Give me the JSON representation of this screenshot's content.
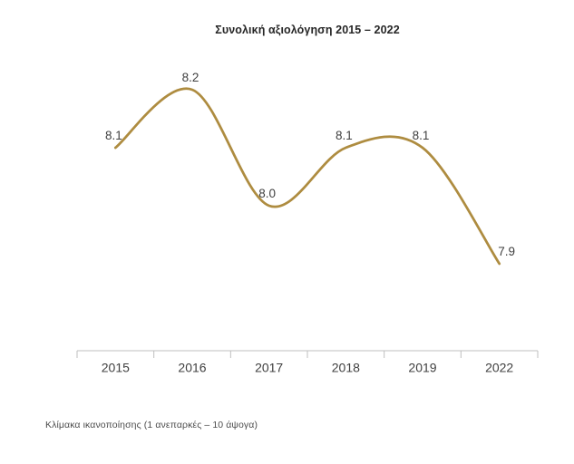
{
  "colors": {
    "background": "#FFFFFF",
    "line": "#AE8C40",
    "axis": "#BFBFBF",
    "title_text": "#262626",
    "data_label_text": "#404040",
    "axis_label_text": "#404040",
    "footnote_text": "#4D4D4D"
  },
  "chart_data": {
    "type": "line",
    "smoothed": true,
    "title": "Συνολική αξιολόγηση 2015 – 2022",
    "categories": [
      "2015",
      "2016",
      "2017",
      "2018",
      "2019",
      "2022"
    ],
    "values": [
      8.1,
      8.2,
      8.0,
      8.1,
      8.1,
      7.9
    ],
    "data_labels": [
      "8.1",
      "8.2",
      "8.0",
      "8.1",
      "8.1",
      "7.9"
    ],
    "xlabel": "",
    "ylabel": "",
    "ylim": [
      7.75,
      8.35
    ],
    "grid": false,
    "legend": "none",
    "y_axis_visible": false,
    "footnote": "Κλίμακα ικανοποίησης (1 ανεπαρκές – 10 άψογα)"
  }
}
